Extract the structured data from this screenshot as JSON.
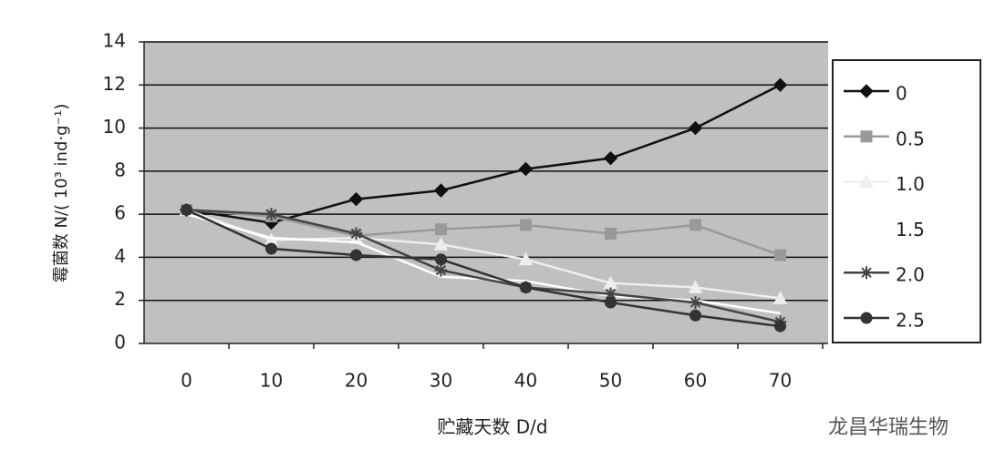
{
  "chart_data": {
    "type": "line",
    "y_label": "霉菌数 N/( 10³ ind·g⁻¹)",
    "x_label": "贮藏天数 D/d",
    "watermark": "龙昌华瑞生物",
    "categories": [
      "0",
      "10",
      "20",
      "30",
      "40",
      "50",
      "60",
      "70"
    ],
    "ylim": [
      0,
      14
    ],
    "yticks": [
      0,
      2,
      4,
      6,
      8,
      10,
      12,
      14
    ],
    "grid": true,
    "legend": "right",
    "series": [
      {
        "name": "0",
        "color": "#111111",
        "marker": "diamond",
        "values": [
          6.2,
          5.6,
          6.7,
          7.1,
          8.1,
          8.6,
          10.0,
          12.0
        ]
      },
      {
        "name": "0.5",
        "color": "#999999",
        "marker": "square",
        "values": [
          6.2,
          5.9,
          5.0,
          5.3,
          5.5,
          5.1,
          5.5,
          4.1
        ]
      },
      {
        "name": "1.0",
        "color": "#eeeeee",
        "marker": "triangle",
        "values": [
          6.2,
          4.8,
          4.9,
          4.6,
          3.9,
          2.8,
          2.6,
          2.1
        ]
      },
      {
        "name": "1.5",
        "color": "#ffffff",
        "marker": "none",
        "values": [
          6.0,
          4.9,
          4.7,
          3.1,
          2.9,
          2.2,
          2.0,
          1.4
        ]
      },
      {
        "name": "2.0",
        "color": "#444444",
        "marker": "star",
        "values": [
          6.2,
          6.0,
          5.1,
          3.4,
          2.6,
          2.3,
          1.9,
          1.0
        ]
      },
      {
        "name": "2.5",
        "color": "#333333",
        "marker": "circle",
        "values": [
          6.2,
          4.4,
          4.1,
          3.9,
          2.6,
          1.9,
          1.3,
          0.8
        ]
      }
    ]
  }
}
